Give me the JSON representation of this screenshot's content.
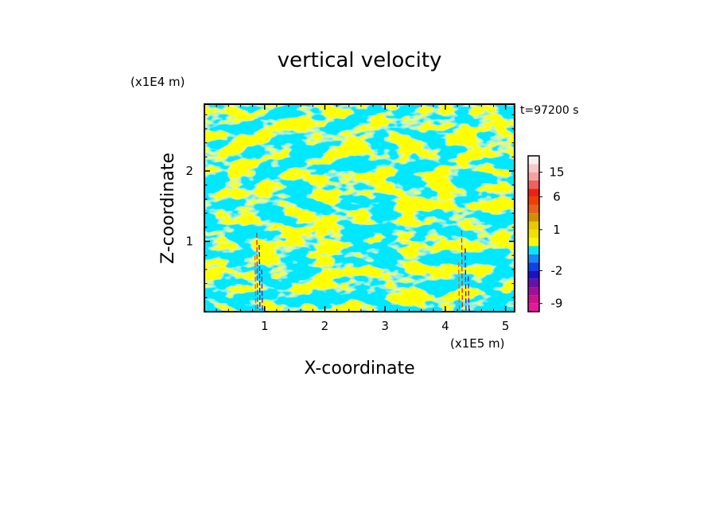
{
  "chart_data": {
    "type": "heatmap",
    "title": "vertical velocity",
    "xlabel": "X-coordinate",
    "ylabel": "Z-coordinate",
    "x_unit": "(x1E5 m)",
    "y_unit": "(x1E4 m)",
    "time_label": "t=97200 s",
    "xlim": [
      0,
      5.15
    ],
    "ylim": [
      0,
      2.95
    ],
    "x_ticks": [
      "1",
      "2",
      "3",
      "4",
      "5"
    ],
    "x_tick_values": [
      1,
      2,
      3,
      4,
      5
    ],
    "y_ticks": [
      "1",
      "2"
    ],
    "y_tick_values": [
      1,
      2
    ],
    "colorbar": {
      "labels": [
        "15",
        "6",
        "1",
        "-2",
        "-9"
      ],
      "label_levels": [
        15,
        6,
        1,
        -2,
        -9
      ],
      "levels": [
        -12,
        -9,
        -6,
        -4,
        -3,
        -2,
        -1,
        -0.5,
        0,
        0.5,
        1,
        2,
        3,
        4,
        6,
        9,
        12,
        15,
        20
      ],
      "colors": [
        "#e8189c",
        "#d0108c",
        "#a0109c",
        "#6810a8",
        "#2010c0",
        "#1040e8",
        "#1888f8",
        "#00e8f8",
        "#f8f800",
        "#f0e000",
        "#e8c800",
        "#d09000",
        "#e86020",
        "#f04000",
        "#f02010",
        "#f06060",
        "#f8a0a0",
        "#f8c8c8",
        "#f8f0f0"
      ]
    },
    "field_colors": {
      "updraft": "#ffff00",
      "downdraft": "#00e8ff"
    }
  }
}
